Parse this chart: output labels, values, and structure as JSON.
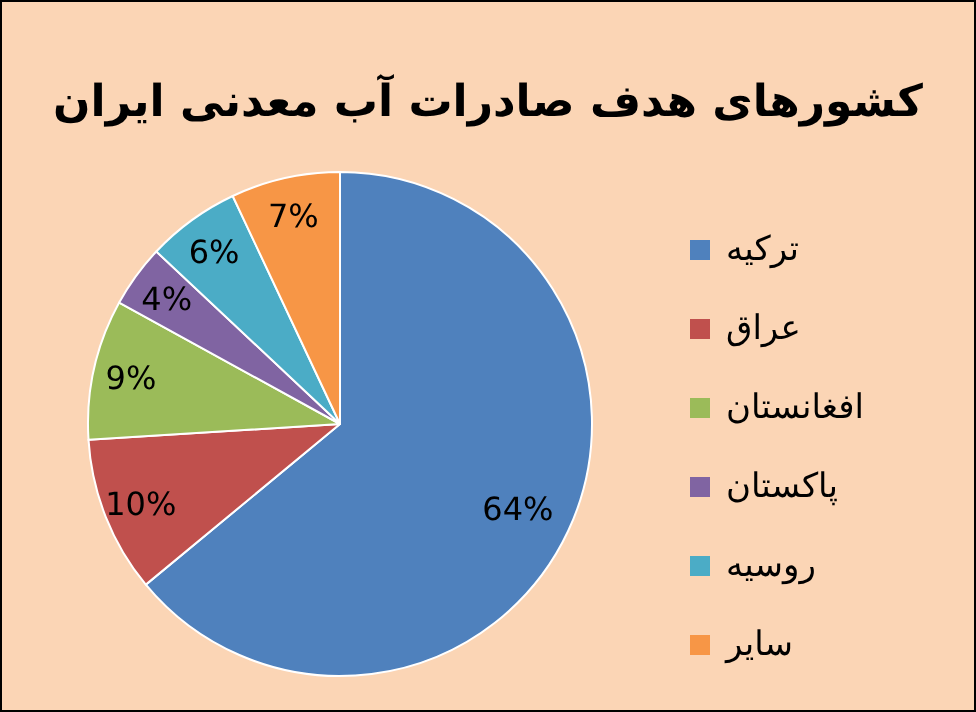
{
  "chart_data": {
    "type": "pie",
    "title": "کشورهای هدف صادرات آب معدنی ایران",
    "categories": [
      "ترکیه",
      "عراق",
      "افغانستان",
      "پاکستان",
      "روسیه",
      "سایر"
    ],
    "values": [
      64,
      10,
      9,
      4,
      6,
      7
    ],
    "colors": [
      "#4f81bd",
      "#c0504d",
      "#9bbb59",
      "#8064a2",
      "#4bacc6",
      "#f79646"
    ],
    "value_labels": [
      "64%",
      "10%",
      "9%",
      "4%",
      "6%",
      "7%"
    ],
    "legend": "right"
  }
}
